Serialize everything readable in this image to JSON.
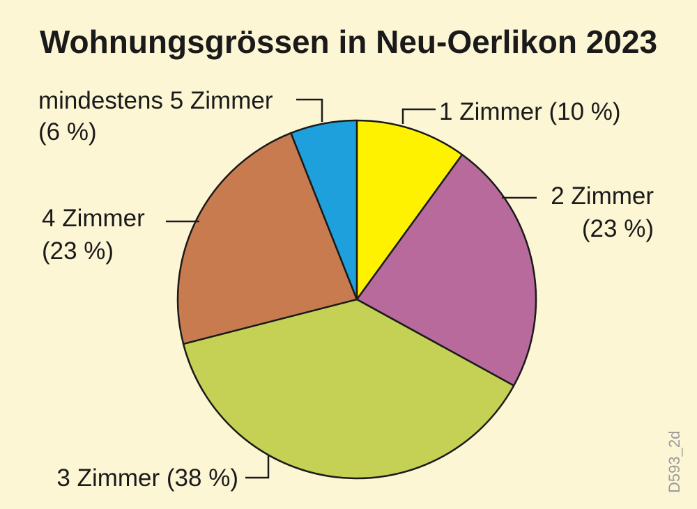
{
  "credit": "D593_2d",
  "chart_data": {
    "type": "pie",
    "title": "Wohnungsgrössen in Neu-Oerlikon 2023",
    "unit": "%",
    "slices": [
      {
        "name": "1 Zimmer",
        "value": 10,
        "color": "#fff200",
        "label_lines": [
          "1 Zimmer (10 %)"
        ]
      },
      {
        "name": "2 Zimmer",
        "value": 23,
        "color": "#b76a9b",
        "label_lines": [
          "2 Zimmer",
          "(23 %)"
        ]
      },
      {
        "name": "3 Zimmer",
        "value": 38,
        "color": "#c4d155",
        "label_lines": [
          "3 Zimmer (38 %)"
        ]
      },
      {
        "name": "4 Zimmer",
        "value": 23,
        "color": "#c87b4f",
        "label_lines": [
          "4 Zimmer",
          "(23 %)"
        ]
      },
      {
        "name": "mindestens 5 Zimmer",
        "value": 6,
        "color": "#1ea0dc",
        "label_lines": [
          "mindestens 5 Zimmer",
          "(6 %)"
        ]
      }
    ]
  }
}
